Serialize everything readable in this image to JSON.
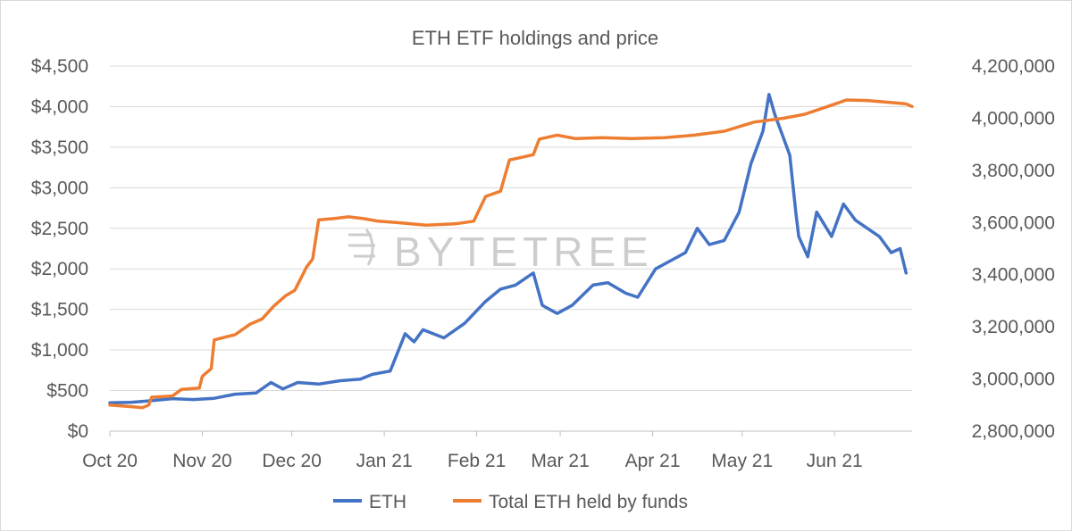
{
  "chart_data": {
    "type": "line",
    "title": "ETH ETF holdings and price",
    "watermark": "BYTETREE",
    "x_axis": {
      "tick_labels": [
        "Oct 20",
        "Nov 20",
        "Dec 20",
        "Jan 21",
        "Feb 21",
        "Mar 21",
        "Apr 21",
        "May 21",
        "Jun 21"
      ],
      "range": [
        "2020-10-01",
        "2021-06-27"
      ]
    },
    "y_left": {
      "tick_labels": [
        "$0",
        "$500",
        "$1,000",
        "$1,500",
        "$2,000",
        "$2,500",
        "$3,000",
        "$3,500",
        "$4,000",
        "$4,500"
      ],
      "range": [
        0,
        4500
      ]
    },
    "y_right": {
      "tick_labels": [
        "2,800,000",
        "3,000,000",
        "3,200,000",
        "3,400,000",
        "3,600,000",
        "3,800,000",
        "4,000,000",
        "4,200,000"
      ],
      "range": [
        2800000,
        4200000
      ]
    },
    "grid": "horizontal",
    "legend": "bottom",
    "series": [
      {
        "name": "ETH",
        "axis": "left",
        "color": "#4472c4",
        "points": [
          [
            "2020-10-01",
            350
          ],
          [
            "2020-10-08",
            355
          ],
          [
            "2020-10-15",
            375
          ],
          [
            "2020-10-22",
            400
          ],
          [
            "2020-10-29",
            390
          ],
          [
            "2020-11-05",
            405
          ],
          [
            "2020-11-12",
            455
          ],
          [
            "2020-11-19",
            470
          ],
          [
            "2020-11-24",
            600
          ],
          [
            "2020-11-28",
            520
          ],
          [
            "2020-12-03",
            600
          ],
          [
            "2020-12-10",
            580
          ],
          [
            "2020-12-17",
            620
          ],
          [
            "2020-12-24",
            640
          ],
          [
            "2020-12-28",
            700
          ],
          [
            "2021-01-03",
            740
          ],
          [
            "2021-01-08",
            1200
          ],
          [
            "2021-01-11",
            1100
          ],
          [
            "2021-01-14",
            1250
          ],
          [
            "2021-01-21",
            1150
          ],
          [
            "2021-01-28",
            1330
          ],
          [
            "2021-02-04",
            1600
          ],
          [
            "2021-02-09",
            1750
          ],
          [
            "2021-02-14",
            1800
          ],
          [
            "2021-02-20",
            1950
          ],
          [
            "2021-02-23",
            1550
          ],
          [
            "2021-02-28",
            1450
          ],
          [
            "2021-03-05",
            1550
          ],
          [
            "2021-03-12",
            1800
          ],
          [
            "2021-03-17",
            1830
          ],
          [
            "2021-03-23",
            1700
          ],
          [
            "2021-03-27",
            1650
          ],
          [
            "2021-04-02",
            2000
          ],
          [
            "2021-04-07",
            2100
          ],
          [
            "2021-04-12",
            2200
          ],
          [
            "2021-04-16",
            2500
          ],
          [
            "2021-04-20",
            2300
          ],
          [
            "2021-04-25",
            2350
          ],
          [
            "2021-04-30",
            2700
          ],
          [
            "2021-05-04",
            3300
          ],
          [
            "2021-05-08",
            3700
          ],
          [
            "2021-05-10",
            4150
          ],
          [
            "2021-05-12",
            3900
          ],
          [
            "2021-05-15",
            3600
          ],
          [
            "2021-05-17",
            3400
          ],
          [
            "2021-05-19",
            2700
          ],
          [
            "2021-05-20",
            2400
          ],
          [
            "2021-05-23",
            2150
          ],
          [
            "2021-05-26",
            2700
          ],
          [
            "2021-05-31",
            2400
          ],
          [
            "2021-06-04",
            2800
          ],
          [
            "2021-06-08",
            2600
          ],
          [
            "2021-06-12",
            2500
          ],
          [
            "2021-06-16",
            2400
          ],
          [
            "2021-06-20",
            2200
          ],
          [
            "2021-06-23",
            2250
          ],
          [
            "2021-06-25",
            1950
          ]
        ]
      },
      {
        "name": "Total ETH held by funds",
        "axis": "right",
        "color": "#ed7d31",
        "points": [
          [
            "2020-10-01",
            2900000
          ],
          [
            "2020-10-07",
            2895000
          ],
          [
            "2020-10-12",
            2890000
          ],
          [
            "2020-10-14",
            2900000
          ],
          [
            "2020-10-15",
            2930000
          ],
          [
            "2020-10-22",
            2935000
          ],
          [
            "2020-10-25",
            2960000
          ],
          [
            "2020-10-31",
            2965000
          ],
          [
            "2020-11-01",
            3010000
          ],
          [
            "2020-11-04",
            3040000
          ],
          [
            "2020-11-05",
            3150000
          ],
          [
            "2020-11-12",
            3170000
          ],
          [
            "2020-11-17",
            3210000
          ],
          [
            "2020-11-21",
            3230000
          ],
          [
            "2020-11-25",
            3280000
          ],
          [
            "2020-11-29",
            3320000
          ],
          [
            "2020-12-02",
            3340000
          ],
          [
            "2020-12-06",
            3430000
          ],
          [
            "2020-12-08",
            3460000
          ],
          [
            "2020-12-10",
            3610000
          ],
          [
            "2020-12-15",
            3615000
          ],
          [
            "2020-12-20",
            3622000
          ],
          [
            "2020-12-25",
            3615000
          ],
          [
            "2020-12-30",
            3605000
          ],
          [
            "2021-01-05",
            3600000
          ],
          [
            "2021-01-15",
            3590000
          ],
          [
            "2021-01-25",
            3595000
          ],
          [
            "2021-01-31",
            3605000
          ],
          [
            "2021-02-04",
            3700000
          ],
          [
            "2021-02-09",
            3720000
          ],
          [
            "2021-02-12",
            3840000
          ],
          [
            "2021-02-16",
            3850000
          ],
          [
            "2021-02-20",
            3860000
          ],
          [
            "2021-02-22",
            3920000
          ],
          [
            "2021-02-28",
            3935000
          ],
          [
            "2021-03-06",
            3922000
          ],
          [
            "2021-03-15",
            3925000
          ],
          [
            "2021-03-25",
            3922000
          ],
          [
            "2021-04-05",
            3925000
          ],
          [
            "2021-04-15",
            3935000
          ],
          [
            "2021-04-25",
            3950000
          ],
          [
            "2021-05-05",
            3985000
          ],
          [
            "2021-05-15",
            4000000
          ],
          [
            "2021-05-22",
            4015000
          ],
          [
            "2021-05-31",
            4050000
          ],
          [
            "2021-06-05",
            4070000
          ],
          [
            "2021-06-12",
            4068000
          ],
          [
            "2021-06-20",
            4060000
          ],
          [
            "2021-06-25",
            4055000
          ],
          [
            "2021-06-27",
            4045000
          ]
        ]
      }
    ]
  }
}
